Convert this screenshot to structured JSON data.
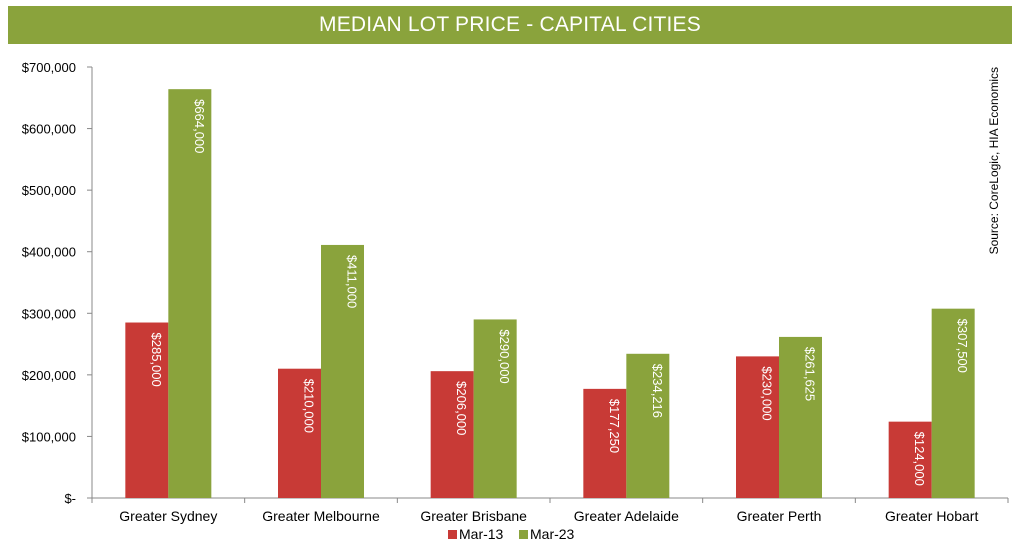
{
  "chart_data": {
    "type": "bar",
    "title": "MEDIAN LOT PRICE - CAPITAL CITIES",
    "source": "Source: CoreLogic, HIA Economics",
    "categories": [
      "Greater Sydney",
      "Greater Melbourne",
      "Greater Brisbane",
      "Greater Adelaide",
      "Greater Perth",
      "Greater Hobart"
    ],
    "series": [
      {
        "name": "Mar-13",
        "color": "#c83a36",
        "values": [
          285000,
          210000,
          206000,
          177250,
          230000,
          124000
        ],
        "labels": [
          "$285,000",
          "$210,000",
          "$206,000",
          "$177,250",
          "$230,000",
          "$124,000"
        ]
      },
      {
        "name": "Mar-23",
        "color": "#8aa33c",
        "values": [
          664000,
          411000,
          290000,
          234216,
          261625,
          307500
        ],
        "labels": [
          "$664,000",
          "$411,000",
          "$290,000",
          "$234,216",
          "$261,625",
          "$307,500"
        ]
      }
    ],
    "ylim": [
      0,
      700000
    ],
    "yticks": [
      0,
      100000,
      200000,
      300000,
      400000,
      500000,
      600000,
      700000
    ],
    "ytick_labels": [
      "$-",
      "$100,000",
      "$200,000",
      "$300,000",
      "$400,000",
      "$500,000",
      "$600,000",
      "$700,000"
    ],
    "xlabel": "",
    "ylabel": "",
    "legend": "bottom",
    "grid": false
  }
}
